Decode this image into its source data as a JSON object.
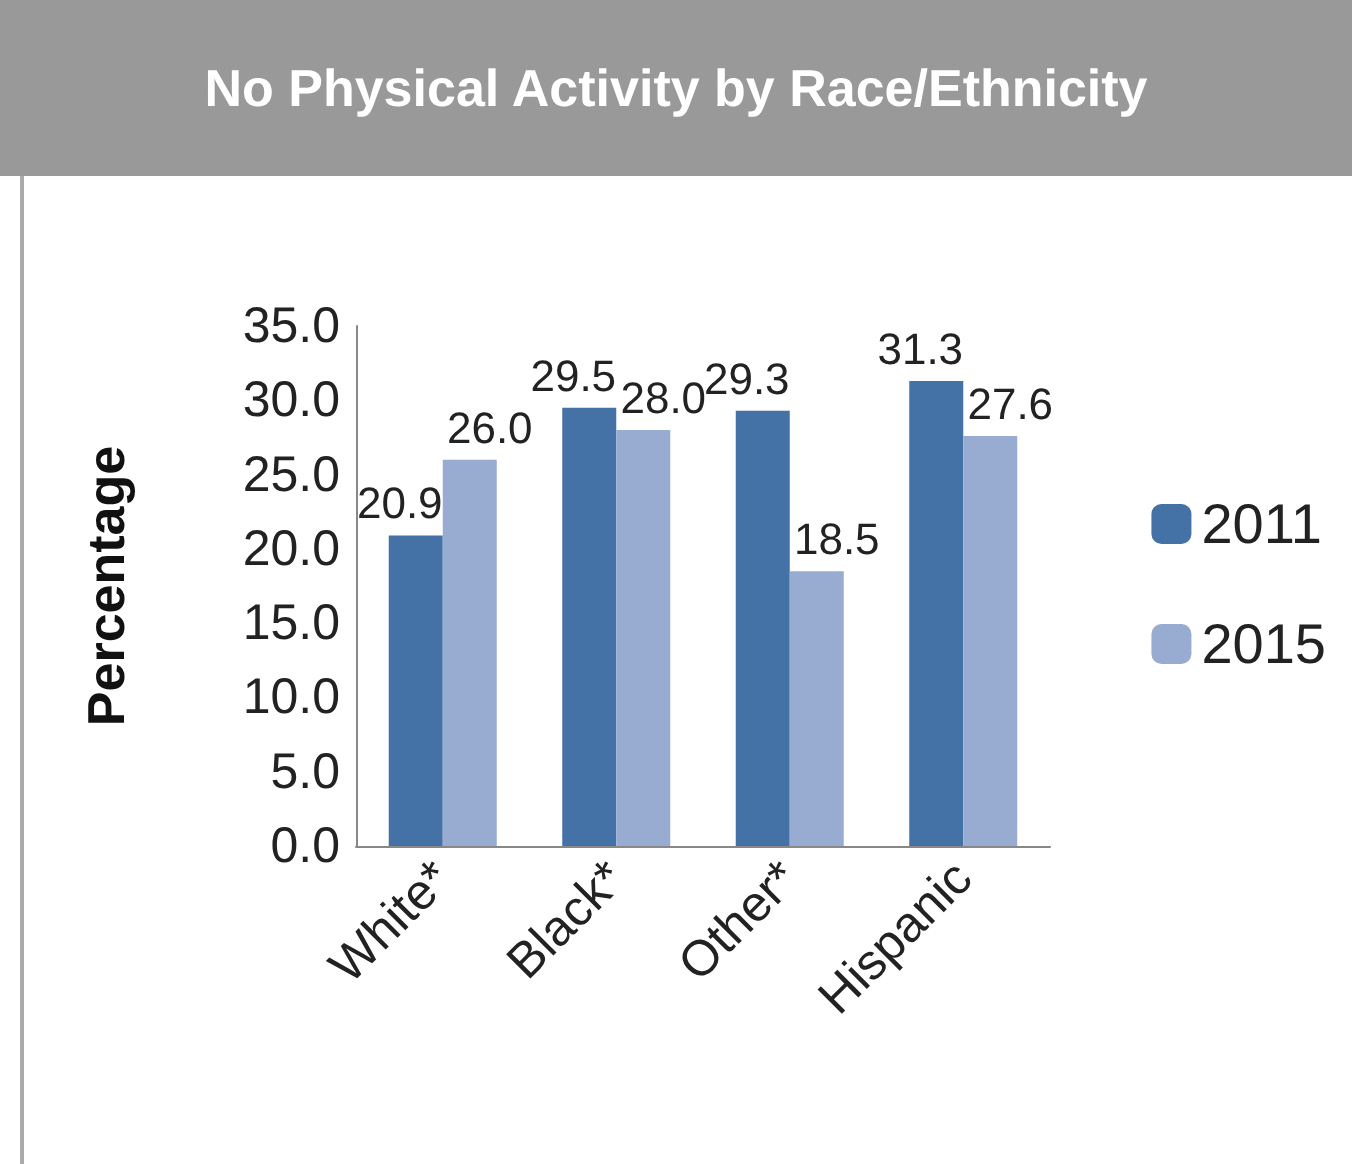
{
  "chart_data": {
    "type": "bar",
    "title": "No Physical Activity by Race/Ethnicity",
    "ylabel": "Percentage",
    "categories": [
      "White*",
      "Black*",
      "Other*",
      "Hispanic"
    ],
    "series": [
      {
        "name": "2011",
        "color": "#4472a6",
        "values": [
          20.9,
          29.5,
          29.3,
          31.3
        ],
        "value_labels": [
          "20.9",
          "29.5",
          "29.3",
          "31.3"
        ]
      },
      {
        "name": "2015",
        "color": "#98acd2",
        "values": [
          26.0,
          28.0,
          18.5,
          27.6
        ],
        "value_labels": [
          "26.0",
          "28.0",
          "18.5",
          "27.6"
        ]
      }
    ],
    "ylim": [
      0,
      35
    ],
    "yticks": [
      {
        "value": 0,
        "label": "0.0"
      },
      {
        "value": 5,
        "label": "5.0"
      },
      {
        "value": 10,
        "label": "10.0"
      },
      {
        "value": 15,
        "label": "15.0"
      },
      {
        "value": 20,
        "label": "20.0"
      },
      {
        "value": 25,
        "label": "25.0"
      },
      {
        "value": 30,
        "label": "30.0"
      },
      {
        "value": 35,
        "label": "35.0"
      }
    ],
    "grid": false,
    "legend": "right"
  }
}
